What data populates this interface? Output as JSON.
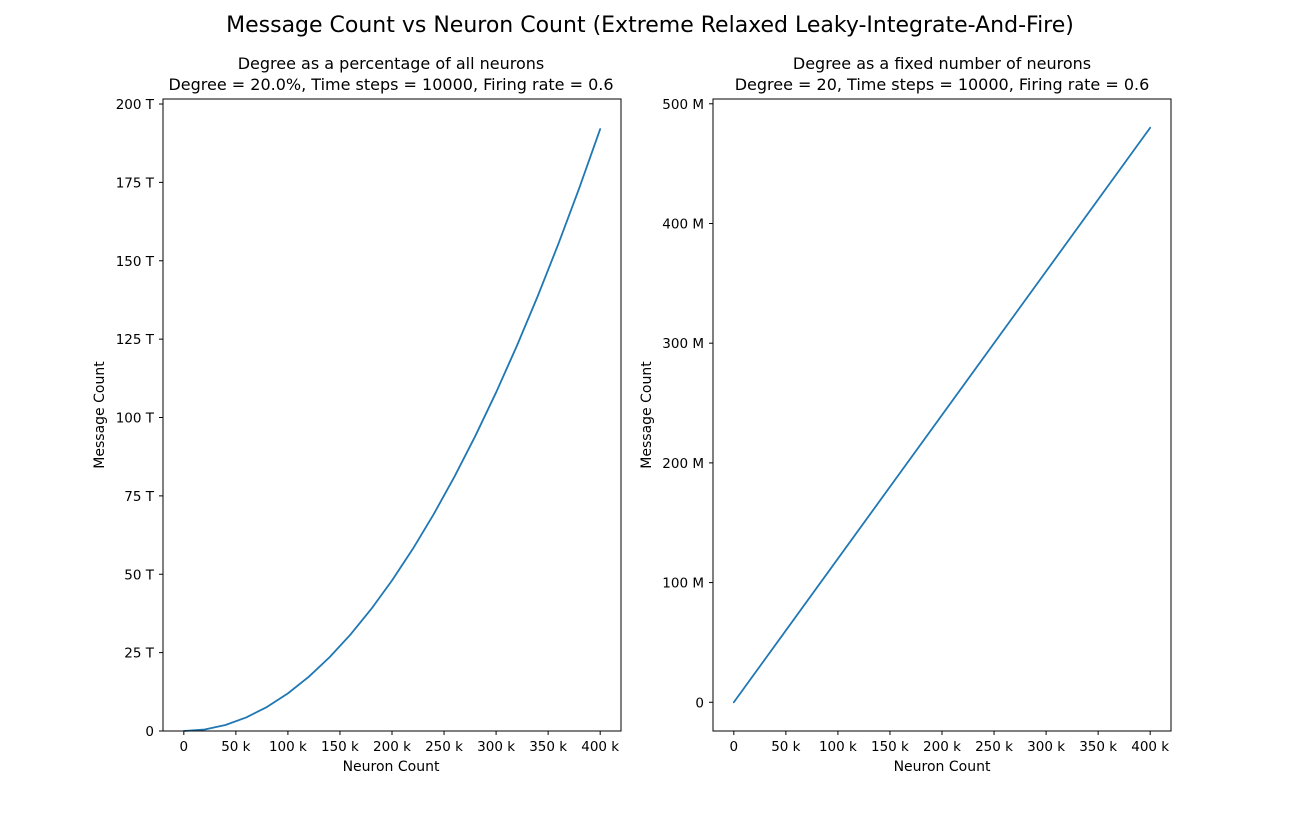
{
  "figure": {
    "suptitle": "Message Count vs Neuron Count (Extreme Relaxed Leaky-Integrate-And-Fire)",
    "line_color": "#1f77b4"
  },
  "chart_data": [
    {
      "type": "line",
      "title": "Degree as a percentage of all neurons",
      "subtitle": "Degree = 20.0%, Time steps = 10000, Firing rate = 0.6",
      "xlabel": "Neuron Count",
      "ylabel": "Message Count",
      "xlim": [
        -20000,
        420000
      ],
      "ylim": [
        -9.6e-15,
        201600000000000
      ],
      "xticks": [
        0,
        50000,
        100000,
        150000,
        200000,
        250000,
        300000,
        350000,
        400000
      ],
      "xtick_labels": [
        "0",
        "50 k",
        "100 k",
        "150 k",
        "200 k",
        "250 k",
        "300 k",
        "350 k",
        "400 k"
      ],
      "yticks": [
        0,
        25000000000000,
        50000000000000,
        75000000000000,
        100000000000000,
        125000000000000,
        150000000000000,
        175000000000000,
        200000000000000
      ],
      "ytick_labels": [
        "0",
        "25 T",
        "50 T",
        "75 T",
        "100 T",
        "125 T",
        "150 T",
        "175 T",
        "200 T"
      ],
      "series": [
        {
          "x": [
            0,
            20000,
            40000,
            60000,
            80000,
            100000,
            120000,
            140000,
            160000,
            180000,
            200000,
            220000,
            240000,
            260000,
            280000,
            300000,
            320000,
            340000,
            360000,
            380000,
            400000
          ],
          "y": [
            0,
            480000000000,
            1920000000000,
            4320000000000,
            7680000000000,
            12000000000000,
            17280000000000,
            23520000000000,
            30720000000000,
            38880000000000,
            48000000000000,
            58080000000000,
            69120000000000,
            81120000000000,
            94080000000000,
            108000000000000,
            122880000000000,
            138720000000000,
            155520000000000,
            173280000000000,
            192000000000000
          ]
        }
      ],
      "grid": false
    },
    {
      "type": "line",
      "title": "Degree as a fixed number of neurons",
      "subtitle": "Degree = 20, Time steps = 10000, Firing rate = 0.6",
      "xlabel": "Neuron Count",
      "ylabel": "Message Count",
      "xlim": [
        -20000,
        420000
      ],
      "ylim": [
        -24000000,
        504000000
      ],
      "xticks": [
        0,
        50000,
        100000,
        150000,
        200000,
        250000,
        300000,
        350000,
        400000
      ],
      "xtick_labels": [
        "0",
        "50 k",
        "100 k",
        "150 k",
        "200 k",
        "250 k",
        "300 k",
        "350 k",
        "400 k"
      ],
      "yticks": [
        0,
        100000000,
        200000000,
        300000000,
        400000000,
        500000000
      ],
      "ytick_labels": [
        "0",
        "100 M",
        "200 M",
        "300 M",
        "400 M",
        "500 M"
      ],
      "series": [
        {
          "x": [
            0,
            400000
          ],
          "y": [
            0,
            480000000
          ]
        }
      ],
      "grid": false
    }
  ]
}
